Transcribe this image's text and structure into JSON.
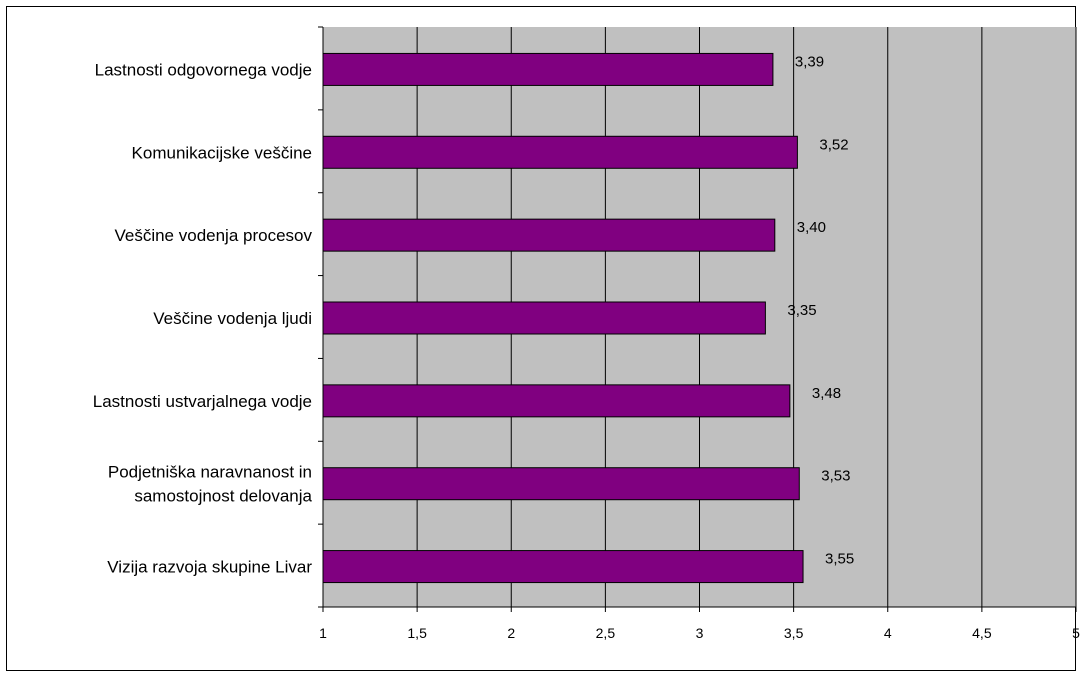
{
  "chart_data": {
    "type": "bar",
    "orientation": "horizontal",
    "categories": [
      "Lastnosti odgovornega vodje",
      "Komunikacijske veščine",
      "Veščine vodenja procesov",
      "Veščine vodenja ljudi",
      "Lastnosti ustvarjalnega vodje",
      "Podjetniška naravnanost in samostojnost delovanja",
      "Vizija razvoja skupine Livar"
    ],
    "category_lines": [
      [
        "Lastnosti odgovornega vodje"
      ],
      [
        "Komunikacijske veščine"
      ],
      [
        "Veščine vodenja procesov"
      ],
      [
        "Veščine vodenja ljudi"
      ],
      [
        "Lastnosti ustvarjalnega vodje"
      ],
      [
        "Podjetniška naravnanost in",
        "samostojnost delovanja"
      ],
      [
        "Vizija razvoja skupine Livar"
      ]
    ],
    "values": [
      3.39,
      3.52,
      3.4,
      3.35,
      3.48,
      3.53,
      3.55
    ],
    "value_labels": [
      "3,39",
      "3,52",
      "3,40",
      "3,35",
      "3,48",
      "3,53",
      "3,55"
    ],
    "xlim": [
      1,
      5
    ],
    "xticks": [
      1,
      1.5,
      2,
      2.5,
      3,
      3.5,
      4,
      4.5,
      5
    ],
    "xtick_labels": [
      "1",
      "1,5",
      "2",
      "2,5",
      "3",
      "3,5",
      "4",
      "4,5",
      "5"
    ],
    "grid": true,
    "legend": "none",
    "colors": {
      "bar": "#800080",
      "plot_background": "#c0c0c0",
      "gridline": "#000000"
    }
  }
}
